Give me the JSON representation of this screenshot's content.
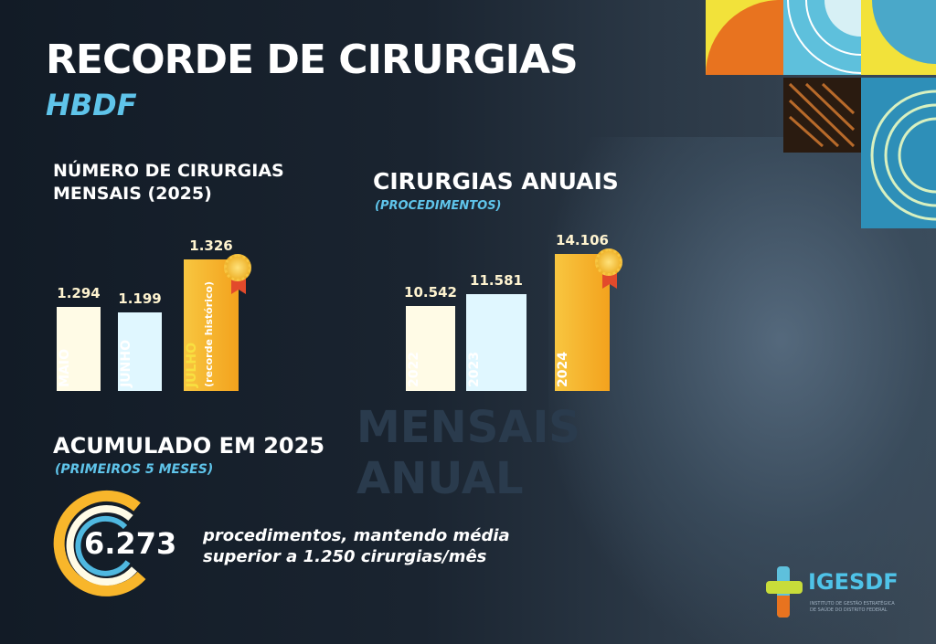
{
  "header": {
    "title": "RECORDE DE CIRURGIAS",
    "subtitle": "HBDF"
  },
  "chart_data": [
    {
      "type": "bar",
      "title": "NÚMERO DE CIRURGIAS MENSAIS (2025)",
      "categories": [
        "MAIO",
        "JUNHO",
        "JULHO"
      ],
      "values": [
        1294,
        1199,
        1326
      ],
      "value_labels": [
        "1.294",
        "1.199",
        "1.326"
      ],
      "annotation": "(recorde histórico)",
      "colors": [
        "#fffbe6",
        "#e0f7ff",
        "#f8b62b"
      ]
    },
    {
      "type": "bar",
      "title": "CIRURGIAS ANUAIS",
      "subtitle": "(PROCEDIMENTOS)",
      "categories": [
        "2022",
        "2023",
        "2024"
      ],
      "values": [
        10542,
        11581,
        14106
      ],
      "value_labels": [
        "10.542",
        "11.581",
        "14.106"
      ],
      "colors": [
        "#fffbe6",
        "#e0f7ff",
        "#f8b62b"
      ]
    }
  ],
  "accumulated": {
    "title": "ACUMULADO EM 2025",
    "subtitle": "(PRIMEIROS 5 MESES)",
    "value": "6.273",
    "text1": "procedimentos, mantendo média",
    "text2": "superior a 1.250 cirurgias/mês"
  },
  "logo": {
    "name": "IGESDF",
    "tagline1": "INSTITUTO DE GESTÃO ESTRATÉGICA",
    "tagline2": "DE SAÚDE DO DISTRITO FEDERAL"
  },
  "watermarks": [
    "MENSAIS",
    "ANUAL"
  ]
}
